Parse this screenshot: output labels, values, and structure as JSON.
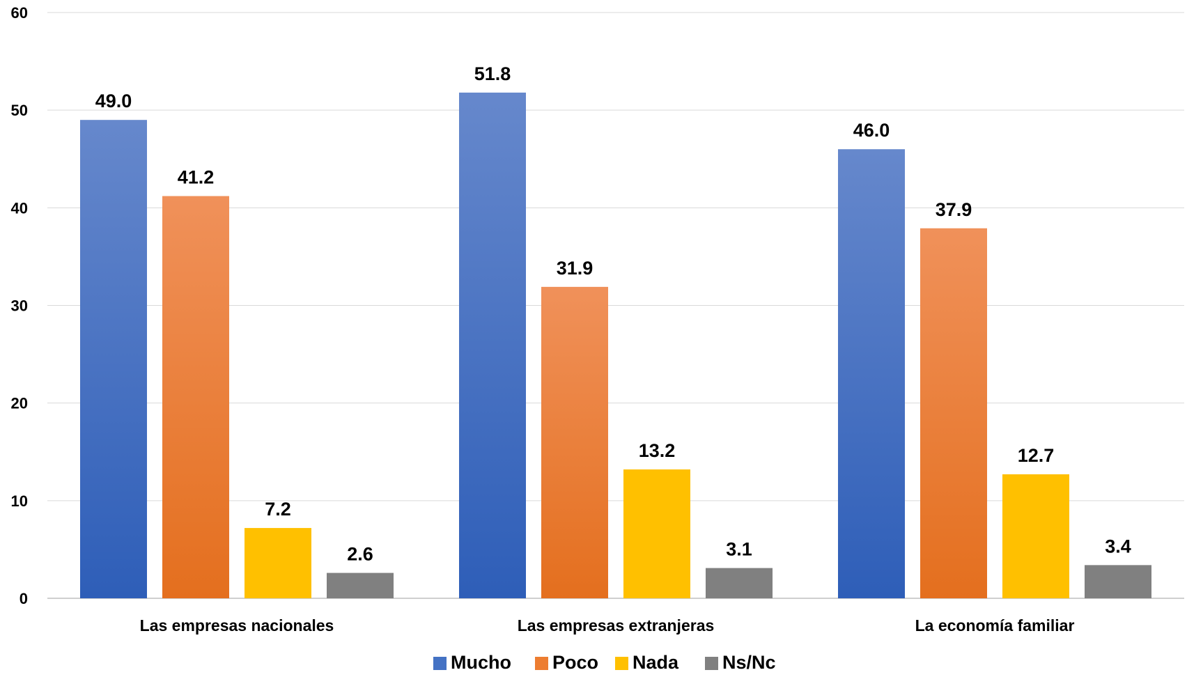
{
  "chart_data": {
    "type": "bar",
    "title": "",
    "xlabel": "",
    "ylabel": "",
    "ylim": [
      0,
      60
    ],
    "yticks": [
      0,
      10,
      20,
      30,
      40,
      50,
      60
    ],
    "grid": true,
    "legend_position": "bottom",
    "categories": [
      "Las empresas nacionales",
      "Las empresas extranjeras",
      "La economía familiar"
    ],
    "series": [
      {
        "name": "Mucho",
        "values": [
          49.0,
          51.8,
          46.0
        ],
        "color": "#4472C4",
        "labels": [
          "49.0",
          "51.8",
          "46.0"
        ]
      },
      {
        "name": "Poco",
        "values": [
          41.2,
          31.9,
          37.9
        ],
        "color": "#ED7D31",
        "labels": [
          "41.2",
          "31.9",
          "37.9"
        ]
      },
      {
        "name": "Nada",
        "values": [
          7.2,
          13.2,
          12.7
        ],
        "color": "#FFC000",
        "labels": [
          "7.2",
          "13.2",
          "12.7"
        ]
      },
      {
        "name": "Ns/Nc",
        "values": [
          2.6,
          3.1,
          3.4
        ],
        "color": "#808080",
        "labels": [
          "2.6",
          "3.1",
          "3.4"
        ]
      }
    ]
  }
}
